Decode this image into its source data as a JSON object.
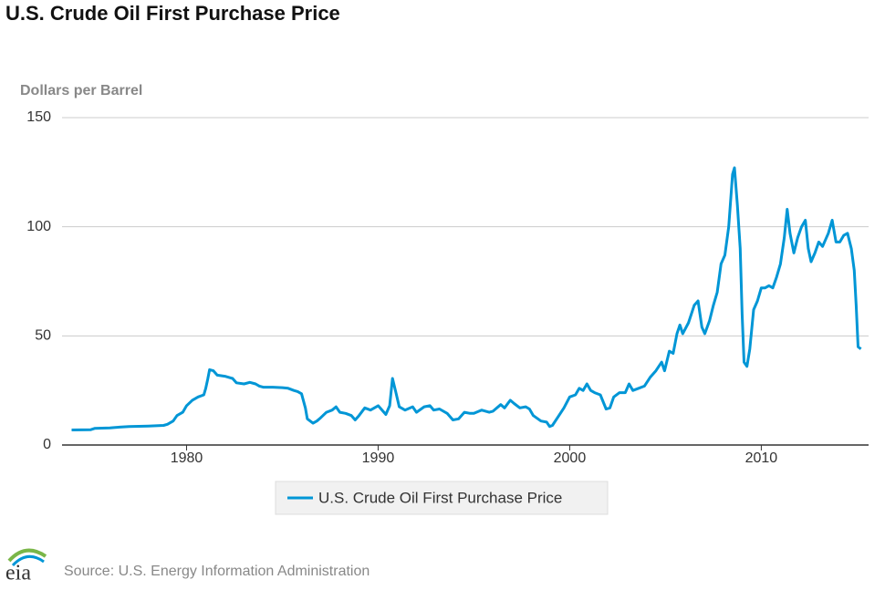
{
  "chart_data": {
    "type": "line",
    "title": "U.S. Crude Oil First Purchase Price",
    "y_label": "Dollars per Barrel",
    "source": "Source: U.S. Energy Information Administration",
    "logo": "eia",
    "xlim": [
      1973.5,
      2015.6
    ],
    "xticks": [
      1980,
      1990,
      2000,
      2010
    ],
    "ylim": [
      0,
      150
    ],
    "yticks": [
      0,
      50,
      100,
      150
    ],
    "grid": true,
    "legend": "bottom",
    "x": [
      1974.0,
      1975.0,
      1975.2,
      1976.0,
      1976.5,
      1977.0,
      1978.0,
      1978.8,
      1979.0,
      1979.3,
      1979.5,
      1979.8,
      1980.0,
      1980.3,
      1980.6,
      1980.9,
      1981.0,
      1981.1,
      1981.2,
      1981.4,
      1981.6,
      1982.0,
      1982.4,
      1982.6,
      1983.0,
      1983.3,
      1983.6,
      1983.8,
      1984.0,
      1984.5,
      1985.0,
      1985.3,
      1985.6,
      1985.8,
      1986.0,
      1986.2,
      1986.3,
      1986.6,
      1986.8,
      1987.0,
      1987.3,
      1987.6,
      1987.8,
      1988.0,
      1988.3,
      1988.6,
      1988.8,
      1989.0,
      1989.3,
      1989.6,
      1989.8,
      1990.0,
      1990.4,
      1990.6,
      1990.75,
      1990.9,
      1991.1,
      1991.4,
      1991.8,
      1992.0,
      1992.4,
      1992.7,
      1992.9,
      1993.2,
      1993.6,
      1993.9,
      1994.2,
      1994.5,
      1994.8,
      1995.0,
      1995.4,
      1995.8,
      1996.0,
      1996.4,
      1996.6,
      1996.9,
      1997.1,
      1997.4,
      1997.7,
      1997.9,
      1998.1,
      1998.5,
      1998.8,
      1998.95,
      1999.1,
      1999.4,
      1999.7,
      2000.0,
      2000.3,
      2000.5,
      2000.7,
      2000.9,
      2001.1,
      2001.3,
      2001.6,
      2001.9,
      2002.1,
      2002.3,
      2002.6,
      2002.9,
      2003.1,
      2003.3,
      2003.6,
      2003.9,
      2004.2,
      2004.5,
      2004.8,
      2004.95,
      2005.2,
      2005.4,
      2005.6,
      2005.75,
      2005.9,
      2006.2,
      2006.5,
      2006.7,
      2006.9,
      2007.05,
      2007.3,
      2007.5,
      2007.7,
      2007.9,
      2008.1,
      2008.3,
      2008.5,
      2008.6,
      2008.75,
      2008.9,
      2009.0,
      2009.1,
      2009.25,
      2009.4,
      2009.6,
      2009.8,
      2010.0,
      2010.2,
      2010.4,
      2010.6,
      2010.8,
      2011.0,
      2011.2,
      2011.35,
      2011.5,
      2011.7,
      2011.9,
      2012.1,
      2012.3,
      2012.45,
      2012.6,
      2012.8,
      2013.0,
      2013.2,
      2013.5,
      2013.7,
      2013.9,
      2014.1,
      2014.3,
      2014.5,
      2014.7,
      2014.85,
      2014.95,
      2015.05,
      2015.2
    ],
    "series": [
      {
        "name": "U.S. Crude Oil First Purchase Price",
        "color": "#0096d6",
        "values": [
          6.9,
          7.0,
          7.6,
          7.8,
          8.2,
          8.5,
          8.7,
          9.0,
          9.5,
          11,
          13.5,
          15,
          18,
          20.5,
          22,
          23,
          26,
          30,
          34.5,
          34,
          32,
          31.5,
          30.5,
          28.5,
          28,
          28.7,
          28,
          27,
          26.5,
          26.5,
          26.3,
          26,
          25,
          24.5,
          23.5,
          17,
          12,
          10,
          11,
          12.5,
          15,
          16,
          17.5,
          15,
          14.5,
          13.5,
          11.5,
          13.5,
          17,
          16,
          17,
          18,
          14,
          18,
          30.5,
          25,
          17.5,
          16,
          17.5,
          15,
          17.5,
          18,
          16,
          16.5,
          14.5,
          11.5,
          12,
          15,
          14.5,
          14.5,
          16,
          15,
          15.5,
          18.5,
          17,
          20.5,
          19,
          17,
          17.5,
          16.5,
          13.5,
          11,
          10.5,
          8.5,
          9,
          13,
          17,
          22,
          23,
          26,
          25,
          28,
          25,
          24,
          23,
          16.5,
          17,
          22,
          24,
          24,
          28,
          25,
          26,
          27,
          31,
          34,
          38,
          34,
          43,
          42,
          51,
          55,
          51,
          56,
          64,
          66,
          54,
          51,
          57,
          64,
          70,
          83,
          87,
          100,
          124,
          127,
          110,
          90,
          60,
          38,
          36,
          44,
          62,
          66,
          72,
          72,
          73,
          72,
          77,
          83,
          95,
          108,
          97,
          88,
          95,
          100,
          103,
          90,
          84,
          88,
          93,
          91,
          97,
          103,
          93,
          93,
          96,
          97,
          90,
          80,
          64,
          45,
          44
        ]
      }
    ]
  }
}
